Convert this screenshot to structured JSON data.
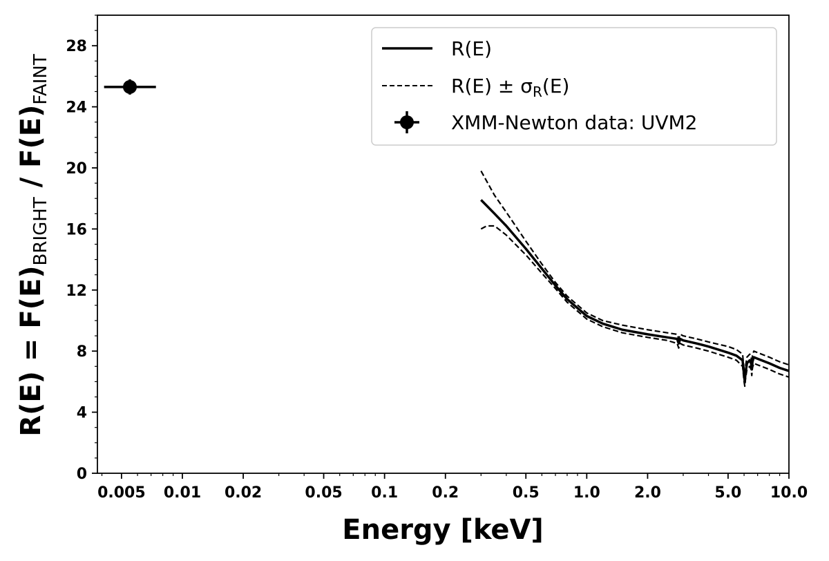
{
  "chart_data": {
    "type": "line",
    "x_scale": "log",
    "xlim": [
      0.0038,
      10.0
    ],
    "ylim": [
      0,
      30
    ],
    "xlabel": "Energy [keV]",
    "ylabel": {
      "lead": "R(E) = F(E)",
      "sub1": "BRIGHT",
      "mid": " / F(E)",
      "sub2": "FAINT"
    },
    "x_ticks": [
      0.005,
      0.01,
      0.02,
      0.05,
      0.1,
      0.2,
      0.5,
      1.0,
      2.0,
      5.0,
      10.0
    ],
    "x_tick_labels": [
      "0.005",
      "0.01",
      "0.02",
      "0.05",
      "0.1",
      "0.2",
      "0.5",
      "1.0",
      "2.0",
      "5.0",
      "10.0"
    ],
    "y_ticks": [
      0,
      4,
      8,
      12,
      16,
      20,
      24,
      28
    ],
    "y_tick_labels": [
      "0",
      "4",
      "8",
      "12",
      "16",
      "20",
      "24",
      "28"
    ],
    "legend": {
      "position": "top-right",
      "entries": [
        {
          "key": "R(E)",
          "text": "R(E)"
        },
        {
          "key": "band",
          "text_lead": "R(E) ± σ",
          "text_sub": "R",
          "text_tail": "(E)"
        },
        {
          "key": "xmm",
          "text": "XMM-Newton data: UVM2"
        }
      ]
    },
    "series": [
      {
        "name": "R(E)",
        "style": "solid",
        "x": [
          0.3,
          0.35,
          0.4,
          0.5,
          0.6,
          0.7,
          0.8,
          1.0,
          1.2,
          1.5,
          2.0,
          2.5,
          2.8,
          2.85,
          2.9,
          3.0,
          3.5,
          4.0,
          5.0,
          5.5,
          5.9,
          6.0,
          6.05,
          6.1,
          6.2,
          6.4,
          6.5,
          6.55,
          6.6,
          6.7,
          7.0,
          8.0,
          9.0,
          10.0
        ],
        "y": [
          17.9,
          17.0,
          16.2,
          14.7,
          13.4,
          12.3,
          11.4,
          10.3,
          9.8,
          9.4,
          9.1,
          8.9,
          8.8,
          8.5,
          8.8,
          8.7,
          8.5,
          8.3,
          7.9,
          7.7,
          7.4,
          6.4,
          6.0,
          6.6,
          7.2,
          7.4,
          7.2,
          6.8,
          7.3,
          7.6,
          7.5,
          7.2,
          6.9,
          6.7
        ]
      },
      {
        "name": "R(E) + σR(E)",
        "style": "dashed",
        "x": [
          0.3,
          0.35,
          0.4,
          0.5,
          0.6,
          0.7,
          0.8,
          1.0,
          1.2,
          1.5,
          2.0,
          2.5,
          2.8,
          2.85,
          2.9,
          3.0,
          3.5,
          4.0,
          5.0,
          5.5,
          5.9,
          6.0,
          6.05,
          6.1,
          6.2,
          6.4,
          6.5,
          6.55,
          6.6,
          6.7,
          7.0,
          8.0,
          9.0,
          10.0
        ],
        "y": [
          19.8,
          18.2,
          17.1,
          15.2,
          13.7,
          12.5,
          11.6,
          10.5,
          10.0,
          9.7,
          9.4,
          9.2,
          9.1,
          8.8,
          9.1,
          9.0,
          8.8,
          8.6,
          8.3,
          8.1,
          7.8,
          6.8,
          6.3,
          7.0,
          7.6,
          7.8,
          7.6,
          7.2,
          7.7,
          8.0,
          7.9,
          7.6,
          7.3,
          7.1
        ]
      },
      {
        "name": "R(E) − σR(E)",
        "style": "dashed",
        "x": [
          0.3,
          0.32,
          0.35,
          0.4,
          0.5,
          0.6,
          0.7,
          0.8,
          1.0,
          1.2,
          1.5,
          2.0,
          2.5,
          2.8,
          2.85,
          2.9,
          3.0,
          3.5,
          4.0,
          5.0,
          5.5,
          5.9,
          6.0,
          6.05,
          6.1,
          6.2,
          6.4,
          6.5,
          6.55,
          6.6,
          6.7,
          7.0,
          8.0,
          9.0,
          10.0
        ],
        "y": [
          16.0,
          16.2,
          16.2,
          15.6,
          14.3,
          13.1,
          12.1,
          11.2,
          10.1,
          9.6,
          9.2,
          8.9,
          8.7,
          8.5,
          8.2,
          8.5,
          8.4,
          8.2,
          8.0,
          7.6,
          7.4,
          7.0,
          6.0,
          5.7,
          6.2,
          6.8,
          7.0,
          6.8,
          6.4,
          6.9,
          7.2,
          7.1,
          6.8,
          6.5,
          6.3
        ]
      }
    ],
    "points": [
      {
        "name": "XMM-Newton data: UVM2",
        "x": 0.0055,
        "y": 25.3,
        "x_err_low": 0.0041,
        "x_err_high": 0.0074,
        "y_err": 0.5
      }
    ]
  }
}
